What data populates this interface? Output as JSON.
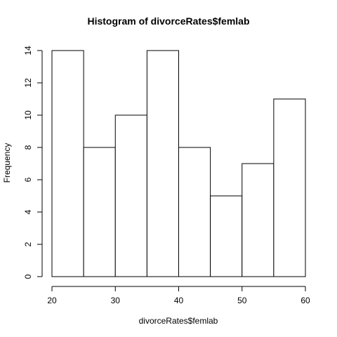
{
  "chart_data": {
    "type": "bar",
    "title": "Histogram of divorceRates$femlab",
    "xlabel": "divorceRates$femlab",
    "ylabel": "Frequency",
    "bins": [
      [
        20,
        25
      ],
      [
        25,
        30
      ],
      [
        30,
        35
      ],
      [
        35,
        40
      ],
      [
        40,
        45
      ],
      [
        45,
        50
      ],
      [
        50,
        55
      ],
      [
        55,
        60
      ]
    ],
    "values": [
      14,
      8,
      10,
      14,
      8,
      5,
      7,
      11
    ],
    "xlim": [
      20,
      60
    ],
    "ylim": [
      0,
      14
    ],
    "x_ticks": [
      20,
      30,
      40,
      50,
      60
    ],
    "y_ticks": [
      0,
      2,
      4,
      6,
      8,
      10,
      12,
      14
    ],
    "grid": false,
    "legend": "none",
    "colors": {
      "bar_fill": "#ffffff",
      "bar_stroke": "#000000",
      "axis": "#000000"
    }
  }
}
